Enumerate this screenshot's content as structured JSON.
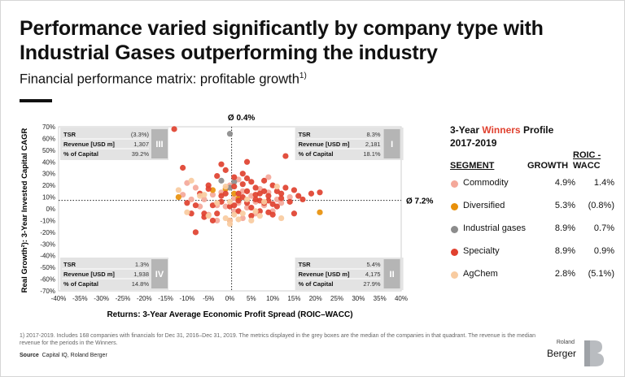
{
  "header": {
    "title": "Performance varied significantly by company type with Industrial Gases outperforming the industry",
    "subtitle": "Financial performance matrix: profitable growth",
    "subtitle_sup": "1)"
  },
  "chart_data": {
    "type": "scatter",
    "xlabel": "Returns: 3-Year Average Economic Profit Spread (ROIC–WACC)",
    "ylabel": "Real Growth²): 3-Year Invested Capital CAGR",
    "x_ticks": [
      "-40%",
      "-35%",
      "-30%",
      "-25%",
      "-20%",
      "-15%",
      "-10%",
      "-5%",
      "0%",
      "5%",
      "10%",
      "15%",
      "20%",
      "25%",
      "30%",
      "35%",
      "40%"
    ],
    "y_ticks": [
      "70%",
      "60%",
      "50%",
      "40%",
      "30%",
      "20%",
      "10%",
      "0%",
      "-10%",
      "-20%",
      "-30%",
      "-40%",
      "-50%",
      "-60%",
      "-70%"
    ],
    "xlim": [
      -40,
      40
    ],
    "ylim": [
      -70,
      70
    ],
    "avg_x_label": "Ø 0.4%",
    "avg_y_label": "Ø 7.2%",
    "avg_x": 0.4,
    "avg_y": 7.2,
    "colors": {
      "Commodity": "#f4a89a",
      "Diversified": "#e8900a",
      "Industrial gases": "#8c8c8c",
      "Specialty": "#e0412f",
      "AgChem": "#f8cba0"
    },
    "series": [
      {
        "name": "Commodity",
        "points": [
          [
            -10,
            22
          ],
          [
            -8,
            18
          ],
          [
            -6,
            8
          ],
          [
            -4,
            12
          ],
          [
            -3,
            3
          ],
          [
            -2,
            14
          ],
          [
            -1,
            2
          ],
          [
            0,
            20
          ],
          [
            1,
            9
          ],
          [
            2,
            5
          ],
          [
            3,
            15
          ],
          [
            4,
            1
          ],
          [
            5,
            11
          ],
          [
            6,
            6
          ],
          [
            7,
            17
          ],
          [
            8,
            3
          ],
          [
            9,
            14
          ],
          [
            10,
            -2
          ],
          [
            11,
            8
          ],
          [
            12,
            5
          ],
          [
            -5,
            -5
          ],
          [
            -7,
            2
          ],
          [
            -9,
            8
          ],
          [
            3,
            -8
          ],
          [
            6,
            -4
          ],
          [
            2,
            25
          ],
          [
            14,
            10
          ],
          [
            -11,
            12
          ],
          [
            -3,
            -10
          ],
          [
            1,
            -2
          ],
          [
            9,
            27
          ]
        ]
      },
      {
        "name": "Diversified",
        "points": [
          [
            -12,
            10
          ],
          [
            -1,
            17
          ],
          [
            1,
            13
          ],
          [
            2,
            9
          ],
          [
            -4,
            16
          ],
          [
            21,
            -3
          ]
        ]
      },
      {
        "name": "Industrial gases",
        "points": [
          [
            0,
            64
          ],
          [
            -2,
            24
          ],
          [
            1,
            23
          ],
          [
            0,
            18
          ]
        ]
      },
      {
        "name": "Specialty",
        "points": [
          [
            -13,
            68
          ],
          [
            -11,
            35
          ],
          [
            13,
            45
          ],
          [
            -10,
            5
          ],
          [
            -9,
            -4
          ],
          [
            -8,
            -20
          ],
          [
            -7,
            13
          ],
          [
            -6,
            -4
          ],
          [
            -5,
            17
          ],
          [
            -4,
            -10
          ],
          [
            -3,
            28
          ],
          [
            -2,
            6
          ],
          [
            -1,
            33
          ],
          [
            0,
            2
          ],
          [
            1,
            19
          ],
          [
            2,
            7
          ],
          [
            3,
            30
          ],
          [
            4,
            15
          ],
          [
            5,
            1
          ],
          [
            6,
            18
          ],
          [
            7,
            7
          ],
          [
            8,
            24
          ],
          [
            9,
            11
          ],
          [
            10,
            4
          ],
          [
            11,
            15
          ],
          [
            12,
            9
          ],
          [
            13,
            18
          ],
          [
            14,
            6
          ],
          [
            15,
            16
          ],
          [
            16,
            11
          ],
          [
            17,
            8
          ],
          [
            19,
            13
          ],
          [
            21,
            14
          ],
          [
            -3,
            -4
          ],
          [
            0,
            -10
          ],
          [
            5,
            23
          ],
          [
            7,
            13
          ],
          [
            10,
            -5
          ],
          [
            -1,
            13
          ],
          [
            3,
            10
          ],
          [
            5,
            -6
          ],
          [
            6,
            8
          ],
          [
            8,
            15
          ],
          [
            2,
            -2
          ],
          [
            -6,
            -7
          ],
          [
            4,
            26
          ],
          [
            9,
            -3
          ],
          [
            11,
            2
          ],
          [
            -2,
            11
          ],
          [
            7,
            -2
          ],
          [
            8,
            5
          ],
          [
            -8,
            3
          ],
          [
            1,
            3
          ],
          [
            4,
            5
          ],
          [
            6,
            12
          ],
          [
            9,
            7
          ],
          [
            12,
            13
          ],
          [
            -4,
            3
          ],
          [
            3,
            21
          ],
          [
            15,
            -4
          ],
          [
            -2,
            38
          ],
          [
            1,
            27
          ],
          [
            4,
            40
          ],
          [
            -5,
            20
          ],
          [
            10,
            20
          ],
          [
            2,
            13
          ]
        ]
      },
      {
        "name": "AgChem",
        "points": [
          [
            -10,
            -3
          ],
          [
            -9,
            24
          ],
          [
            -7,
            11
          ],
          [
            -5,
            -6
          ],
          [
            -3,
            5
          ],
          [
            -1,
            19
          ],
          [
            0,
            -10
          ],
          [
            0,
            -13
          ],
          [
            1,
            -5
          ],
          [
            2,
            -9
          ],
          [
            4,
            8
          ],
          [
            5,
            -10
          ],
          [
            6,
            -2
          ],
          [
            8,
            6
          ],
          [
            11,
            19
          ],
          [
            12,
            -8
          ],
          [
            -12,
            16
          ],
          [
            -6,
            12
          ],
          [
            3,
            -4
          ],
          [
            0,
            6
          ],
          [
            -1,
            -8
          ],
          [
            7,
            -6
          ]
        ]
      }
    ]
  },
  "quadrants": [
    {
      "id": "III",
      "label": "III",
      "rows": [
        {
          "k": "TSR",
          "v": "(3.3%)"
        },
        {
          "k": "Revenue [USD m]",
          "v": "1,307"
        },
        {
          "k": "% of Capital",
          "v": "39.2%"
        }
      ]
    },
    {
      "id": "I",
      "label": "I",
      "rows": [
        {
          "k": "TSR",
          "v": "8.3%"
        },
        {
          "k": "Revenue [USD m]",
          "v": "2,181"
        },
        {
          "k": "% of Capital",
          "v": "18.1%"
        }
      ]
    },
    {
      "id": "IV",
      "label": "IV",
      "rows": [
        {
          "k": "TSR",
          "v": "1.3%"
        },
        {
          "k": "Revenue [USD m]",
          "v": "1,938"
        },
        {
          "k": "% of Capital",
          "v": "14.8%"
        }
      ]
    },
    {
      "id": "II",
      "label": "II",
      "rows": [
        {
          "k": "TSR",
          "v": "5.4%"
        },
        {
          "k": "Revenue [USD m]",
          "v": "4,175"
        },
        {
          "k": "% of Capital",
          "v": "27.9%"
        }
      ]
    }
  ],
  "winners": {
    "title_pre": "3-Year ",
    "title_hl": "Winners",
    "title_post": " Profile",
    "years": "2017-2019",
    "col_segment": "SEGMENT",
    "col_growth": "GROWTH",
    "col_roic_1": "ROIC -",
    "col_roic_2": "WACC",
    "rows": [
      {
        "name": "Commodity",
        "growth": "4.9%",
        "roic": "1.4%",
        "color": "#f4a89a"
      },
      {
        "name": "Diversified",
        "growth": "5.3%",
        "roic": "(0.8%)",
        "color": "#e8900a"
      },
      {
        "name": "Industrial gases",
        "growth": "8.9%",
        "roic": "0.7%",
        "color": "#8c8c8c"
      },
      {
        "name": "Specialty",
        "growth": "8.9%",
        "roic": "0.9%",
        "color": "#e0412f"
      },
      {
        "name": "AgChem",
        "growth": "2.8%",
        "roic": "(5.1%)",
        "color": "#f8cba0"
      }
    ]
  },
  "footnote": "1) 2017-2019. Includes 168 companies with financials for Dec 31, 2016–Dec 31, 2019. The metrics displayed in the grey boxes are the median of the companies in that quadrant. The revenue is the median revenue for the periods in the Winners.",
  "source_label": "Source",
  "source_text": "Capital IQ, Roland Berger",
  "logo": {
    "line1": "Roland",
    "line2": "Berger"
  }
}
